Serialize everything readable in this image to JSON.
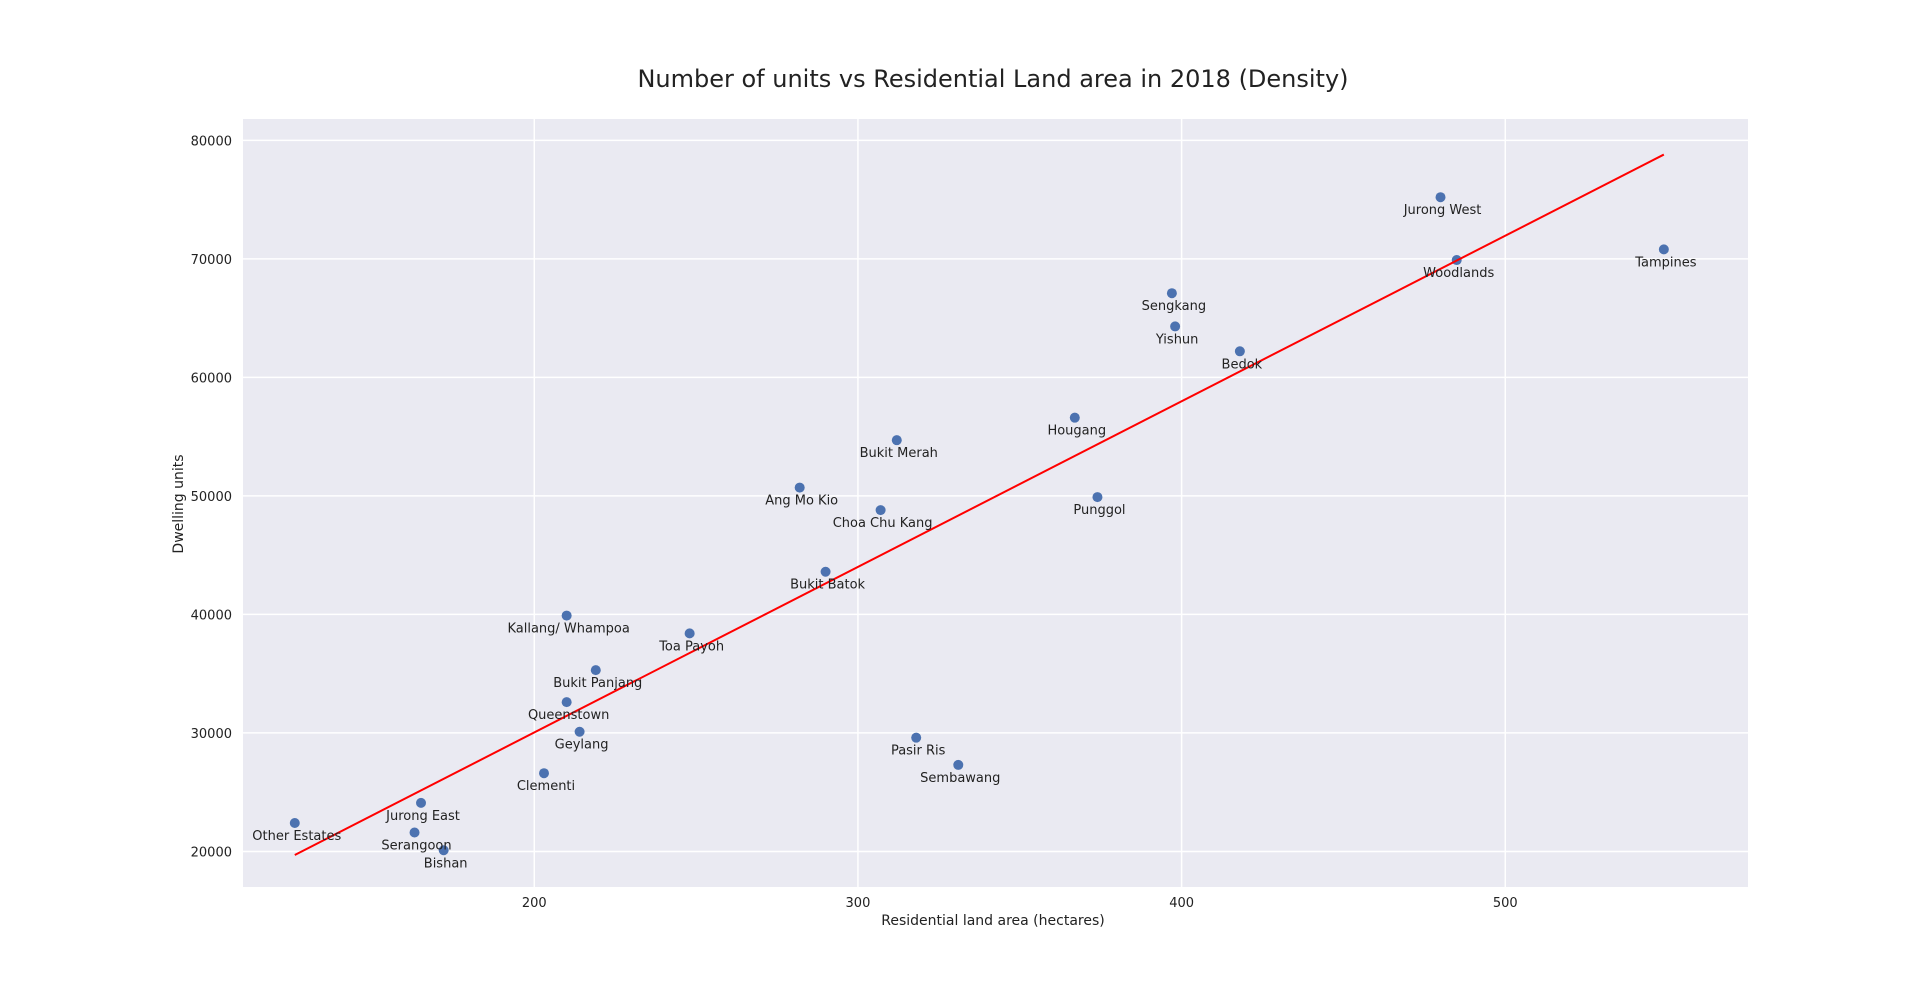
{
  "chart_data": {
    "type": "scatter",
    "title": "Number of units vs Residential Land area in 2018 (Density)",
    "xlabel": "Residential land area (hectares)",
    "ylabel": "Dwelling units",
    "xlim": [
      110,
      575
    ],
    "ylim": [
      17000,
      81800
    ],
    "xticks": [
      200,
      300,
      400,
      500
    ],
    "yticks": [
      20000,
      30000,
      40000,
      50000,
      60000,
      70000,
      80000
    ],
    "grid": true,
    "point_color": "#4c72b0",
    "line_color": "#ff0000",
    "background_color": "#eaeaf2",
    "points": [
      {
        "label": "Jurong West",
        "x": 480,
        "y": 75200
      },
      {
        "label": "Woodlands",
        "x": 485,
        "y": 69900
      },
      {
        "label": "Tampines",
        "x": 549,
        "y": 70800
      },
      {
        "label": "Sengkang",
        "x": 397,
        "y": 67100
      },
      {
        "label": "Yishun",
        "x": 398,
        "y": 64300
      },
      {
        "label": "Bedok",
        "x": 418,
        "y": 62200
      },
      {
        "label": "Hougang",
        "x": 367,
        "y": 56600
      },
      {
        "label": "Bukit Merah",
        "x": 312,
        "y": 54700
      },
      {
        "label": "Ang Mo Kio",
        "x": 282,
        "y": 50700
      },
      {
        "label": "Choa Chu Kang",
        "x": 307,
        "y": 48800
      },
      {
        "label": "Punggol",
        "x": 374,
        "y": 49900
      },
      {
        "label": "Bukit Batok",
        "x": 290,
        "y": 43600
      },
      {
        "label": "Kallang/ Whampoa",
        "x": 210,
        "y": 39900
      },
      {
        "label": "Toa Payoh",
        "x": 248,
        "y": 38400
      },
      {
        "label": "Bukit Panjang",
        "x": 219,
        "y": 35300
      },
      {
        "label": "Queenstown",
        "x": 210,
        "y": 32600
      },
      {
        "label": "Geylang",
        "x": 214,
        "y": 30100
      },
      {
        "label": "Clementi",
        "x": 203,
        "y": 26600
      },
      {
        "label": "Pasir Ris",
        "x": 318,
        "y": 29600
      },
      {
        "label": "Sembawang",
        "x": 331,
        "y": 27300
      },
      {
        "label": "Jurong East",
        "x": 165,
        "y": 24100
      },
      {
        "label": "Serangoon",
        "x": 163,
        "y": 21600
      },
      {
        "label": "Bishan",
        "x": 172,
        "y": 20100
      },
      {
        "label": "Other Estates",
        "x": 126,
        "y": 22400
      }
    ],
    "fit_line": {
      "x": [
        126,
        549
      ],
      "y": [
        19700,
        78800
      ]
    }
  }
}
